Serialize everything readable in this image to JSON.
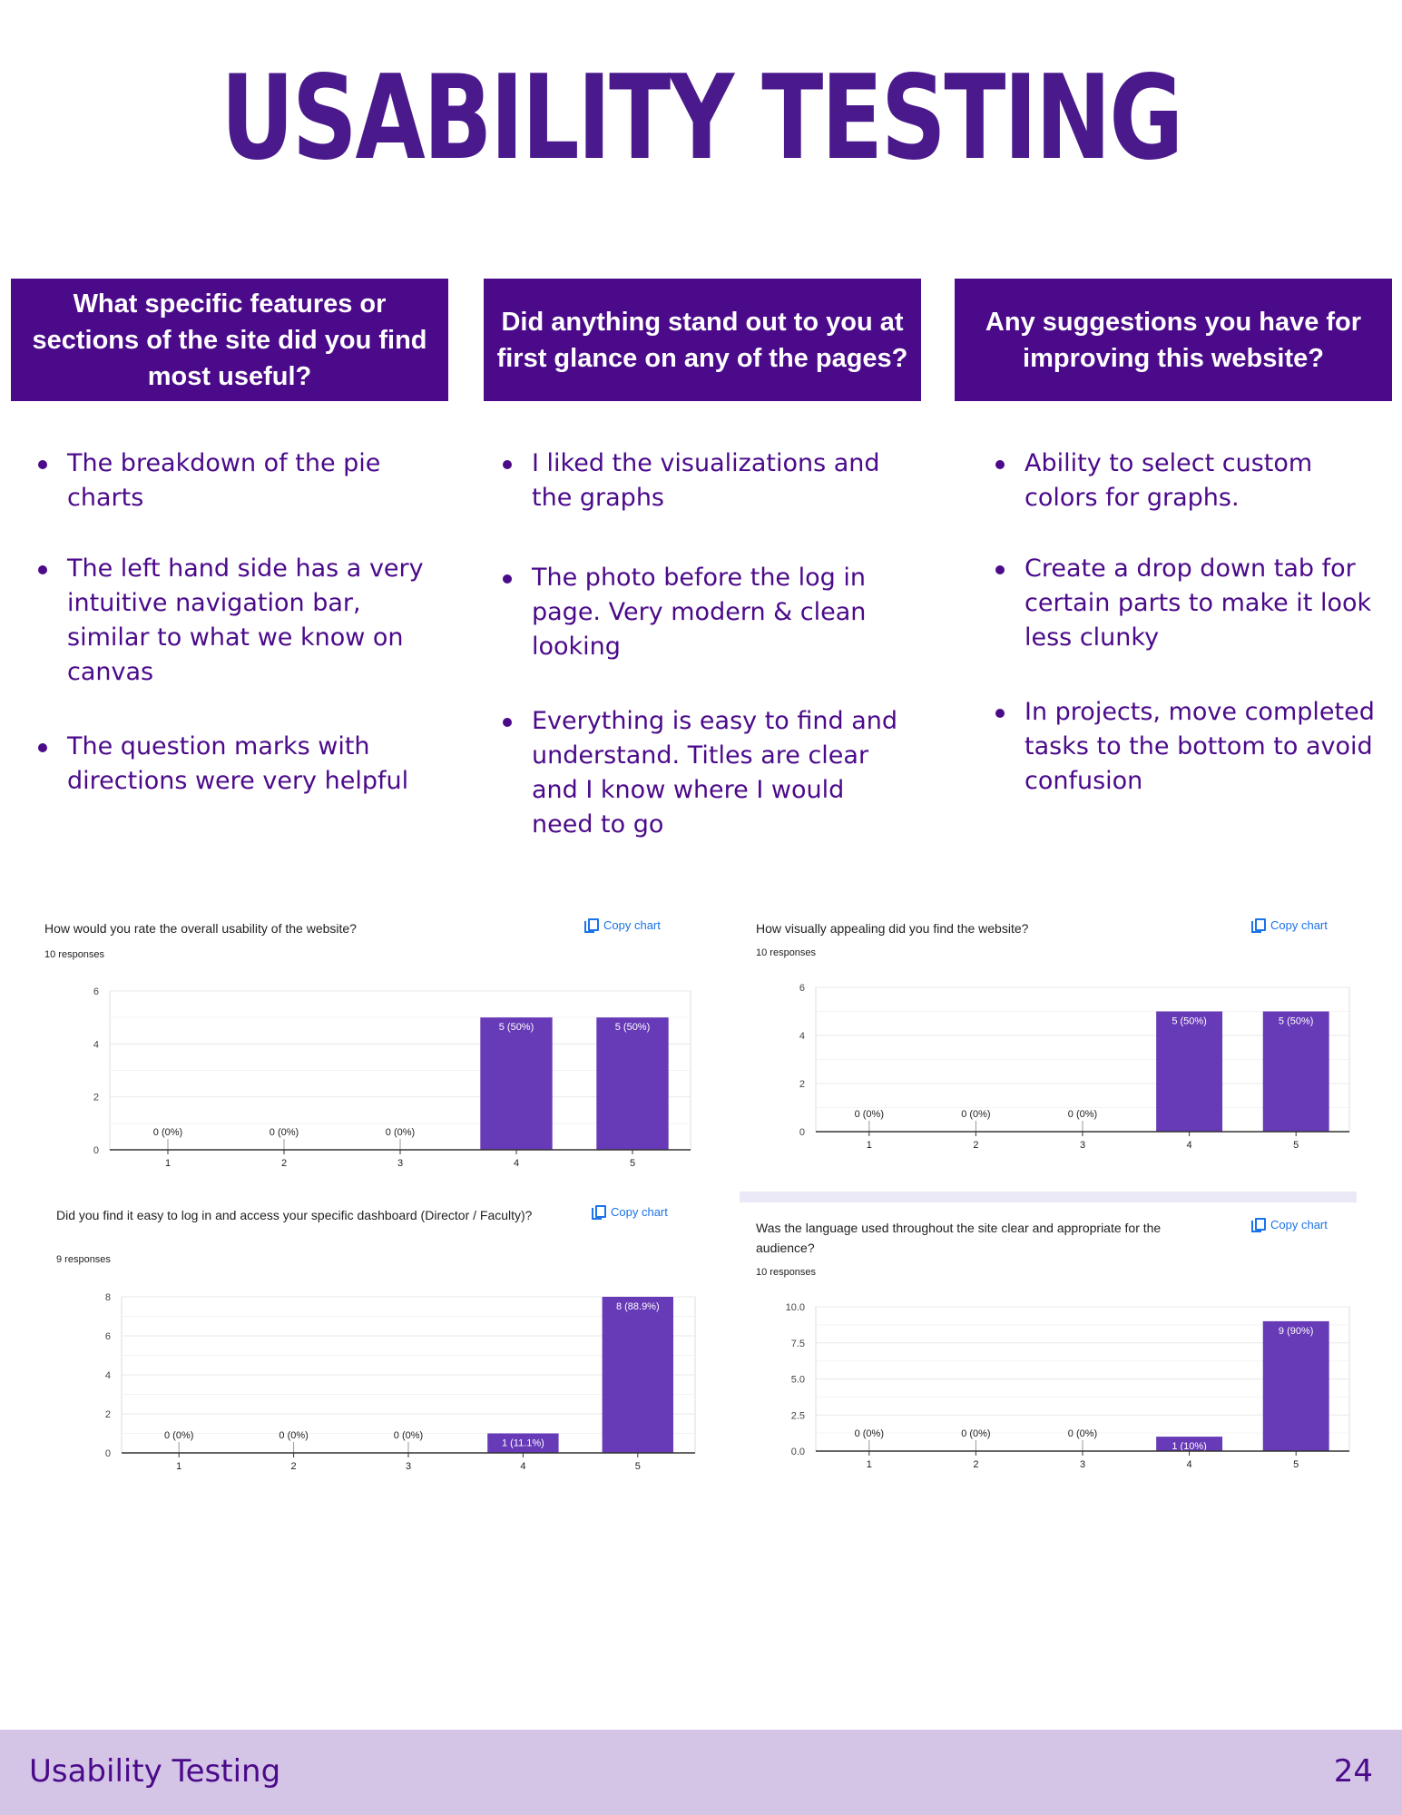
{
  "title": "USABILITY TESTING",
  "columns": [
    {
      "question": "What specific features or sections of the site did you find most useful?",
      "answers": [
        "The breakdown of the pie charts",
        "The left hand side has a very intuitive navigation bar, similar to what we know on canvas",
        "The question marks with directions were very helpful"
      ]
    },
    {
      "question": "Did anything stand out to you at first glance on any of the pages?",
      "answers": [
        "I liked the visualizations and the graphs",
        "The photo before the log in page. Very modern & clean looking",
        " Everything is easy to find and understand. Titles are clear and I know where I would need to go"
      ]
    },
    {
      "question": "Any suggestions you have for improving this website?",
      "answers": [
        "Ability to select custom colors for graphs.",
        "Create a drop down tab for certain parts to make it look less clunky",
        "In projects, move completed tasks to the bottom to avoid confusion"
      ]
    }
  ],
  "copy_label": "Copy chart",
  "colors": {
    "bar": "#673ab7",
    "header": "#4b0a8a",
    "title": "#4a1a8c",
    "footer_bg": "#d4c4e6",
    "link": "#1a73e8"
  },
  "chart_data": [
    {
      "type": "bar",
      "title": "How would you rate the overall usability of the website?",
      "responses": "10 responses",
      "categories": [
        "1",
        "2",
        "3",
        "4",
        "5"
      ],
      "values": [
        0,
        0,
        0,
        5,
        5
      ],
      "labels": [
        "0 (0%)",
        "0 (0%)",
        "0 (0%)",
        "5 (50%)",
        "5 (50%)"
      ],
      "yticks": [
        "0",
        "2",
        "4",
        "6"
      ],
      "ylim": [
        0,
        6
      ]
    },
    {
      "type": "bar",
      "title": "How visually appealing did you find the website?",
      "responses": "10 responses",
      "categories": [
        "1",
        "2",
        "3",
        "4",
        "5"
      ],
      "values": [
        0,
        0,
        0,
        5,
        5
      ],
      "labels": [
        "0 (0%)",
        "0 (0%)",
        "0 (0%)",
        "5 (50%)",
        "5 (50%)"
      ],
      "yticks": [
        "0",
        "2",
        "4",
        "6"
      ],
      "ylim": [
        0,
        6
      ]
    },
    {
      "type": "bar",
      "title": "Did you find it easy to log in and access your specific dashboard (Director / Faculty)?",
      "responses": "9 responses",
      "categories": [
        "1",
        "2",
        "3",
        "4",
        "5"
      ],
      "values": [
        0,
        0,
        0,
        1,
        8
      ],
      "labels": [
        "0 (0%)",
        "0 (0%)",
        "0 (0%)",
        "1 (11.1%)",
        "8 (88.9%)"
      ],
      "yticks": [
        "0",
        "2",
        "4",
        "6",
        "8"
      ],
      "ylim": [
        0,
        8
      ]
    },
    {
      "type": "bar",
      "title": "Was the language used throughout the site clear and appropriate for the audience?",
      "responses": "10 responses",
      "categories": [
        "1",
        "2",
        "3",
        "4",
        "5"
      ],
      "values": [
        0,
        0,
        0,
        1,
        9
      ],
      "labels": [
        "0 (0%)",
        "0 (0%)",
        "0 (0%)",
        "1 (10%)",
        "9 (90%)"
      ],
      "yticks": [
        "0.0",
        "2.5",
        "5.0",
        "7.5",
        "10.0"
      ],
      "ylim": [
        0,
        10
      ]
    }
  ],
  "footer": {
    "label": "Usability Testing",
    "page_number": "24"
  }
}
